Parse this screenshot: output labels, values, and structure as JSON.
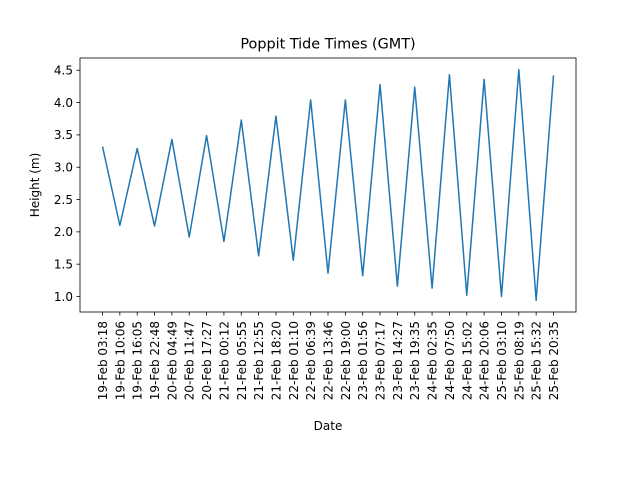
{
  "chart_data": {
    "type": "line",
    "title": "Poppit Tide Times (GMT)",
    "xlabel": "Date",
    "ylabel": "Height (m)",
    "categories": [
      "19-Feb 03:18",
      "19-Feb 10:06",
      "19-Feb 16:05",
      "19-Feb 22:48",
      "20-Feb 04:49",
      "20-Feb 11:47",
      "20-Feb 17:27",
      "21-Feb 00:12",
      "21-Feb 05:55",
      "21-Feb 12:55",
      "21-Feb 18:20",
      "22-Feb 01:10",
      "22-Feb 06:39",
      "22-Feb 13:46",
      "22-Feb 19:00",
      "23-Feb 01:56",
      "23-Feb 07:17",
      "23-Feb 14:27",
      "23-Feb 19:35",
      "24-Feb 02:35",
      "24-Feb 07:50",
      "24-Feb 15:02",
      "24-Feb 20:06",
      "25-Feb 03:10",
      "25-Feb 08:19",
      "25-Feb 15:32",
      "25-Feb 20:35"
    ],
    "series": [
      {
        "values": [
          3.32,
          2.1,
          3.29,
          2.09,
          3.43,
          1.92,
          3.49,
          1.85,
          3.73,
          1.63,
          3.79,
          1.56,
          4.04,
          1.36,
          4.04,
          1.32,
          4.28,
          1.16,
          4.24,
          1.13,
          4.43,
          1.02,
          4.36,
          1.0,
          4.51,
          0.94,
          4.42
        ],
        "color": "#1f77b4"
      }
    ],
    "ylim": [
      0.76,
      4.69
    ],
    "yticks": [
      1.0,
      1.5,
      2.0,
      2.5,
      3.0,
      3.5,
      4.0,
      4.5
    ],
    "grid": false,
    "legend": "none"
  }
}
